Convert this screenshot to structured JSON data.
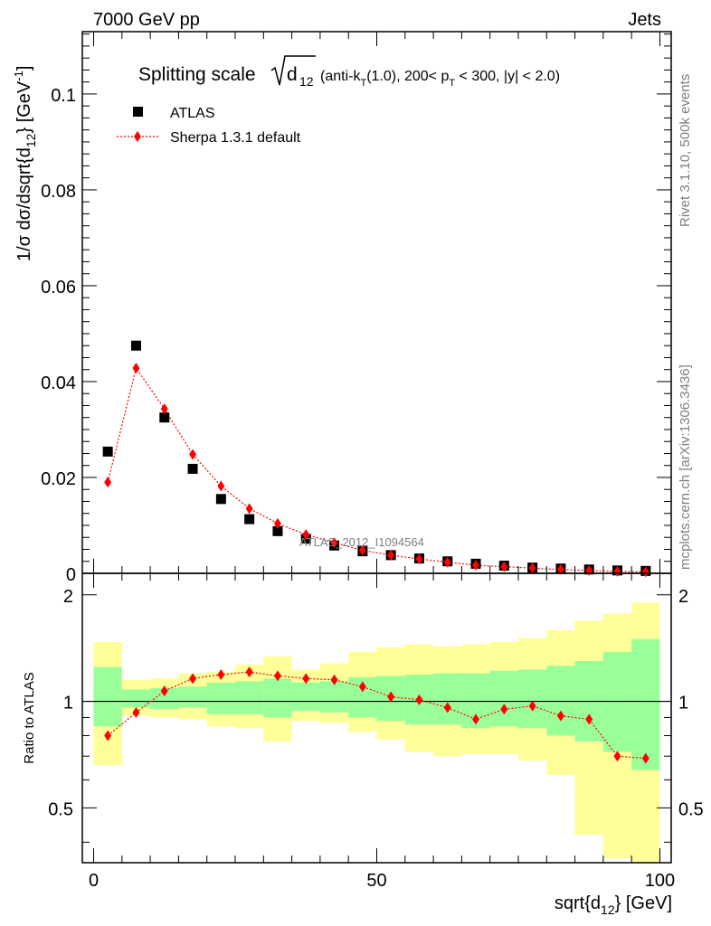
{
  "header": {
    "left": "7000 GeV pp",
    "right": "Jets"
  },
  "side_labels": {
    "rivet": "Rivet 3.1.10,  500k events",
    "mcplots": "mcplots.cern.ch [arXiv:1306.3436]"
  },
  "chart_data": [
    {
      "type": "scatter",
      "title_main": "Splitting scale",
      "title_sqrt": "d",
      "title_sqrt_sub": "12",
      "title_paren": "(anti-k",
      "title_paren_sub": "T",
      "title_paren_rest": "(1.0), 200< p",
      "title_p_sub": "T",
      "title_tail": " < 300, |y| < 2.0)",
      "ylabel": "1/σ dσ/dsqrt{d",
      "ylabel_sub": "12",
      "ylabel_tail": "} [GeV",
      "ylabel_sup": "-1",
      "ylabel_end": "]",
      "watermark": "ATLAS_2012_I1094564",
      "xlim": [
        -2,
        102
      ],
      "ylim": [
        0,
        0.113
      ],
      "yticks": [
        "0",
        "0.02",
        "0.04",
        "0.06",
        "0.08",
        "0.1"
      ],
      "ytick_values": [
        0,
        0.02,
        0.04,
        0.06,
        0.08,
        0.1
      ],
      "legend": {
        "placement": "top-left",
        "atlas": "ATLAS",
        "sherpa": "Sherpa 1.3.1 default"
      },
      "x": [
        2.5,
        7.5,
        12.5,
        17.5,
        22.5,
        27.5,
        32.5,
        37.5,
        42.5,
        47.5,
        52.5,
        57.5,
        62.5,
        67.5,
        72.5,
        77.5,
        82.5,
        87.5,
        92.5,
        97.5
      ],
      "series": [
        {
          "name": "ATLAS",
          "color": "#000000",
          "marker": "square",
          "values": [
            0.0254,
            0.0475,
            0.0325,
            0.0218,
            0.0155,
            0.0113,
            0.0088,
            0.0072,
            0.0058,
            0.0046,
            0.0038,
            0.0031,
            0.0025,
            0.002,
            0.0016,
            0.0012,
            0.001,
            0.0008,
            0.0006,
            0.0005
          ]
        },
        {
          "name": "Sherpa 1.3.1 default",
          "color": "#ff0000",
          "marker": "diamond",
          "values": [
            0.019,
            0.0428,
            0.0343,
            0.0248,
            0.0182,
            0.0135,
            0.0104,
            0.0081,
            0.0064,
            0.0048,
            0.0038,
            0.003,
            0.0023,
            0.0017,
            0.0014,
            0.0011,
            0.0008,
            0.0006,
            0.0004,
            0.0003
          ]
        }
      ]
    },
    {
      "type": "line",
      "ylabel": "Ratio to ATLAS",
      "xlabel_main": "sqrt{d",
      "xlabel_sub": "12",
      "xlabel_tail": "} [GeV]",
      "xlim": [
        -2,
        102
      ],
      "ylim": [
        0.35,
        2.3
      ],
      "xticks": [
        "0",
        "50",
        "100"
      ],
      "xtick_values": [
        0,
        50,
        100
      ],
      "yticks": [
        "0.5",
        "1",
        "2"
      ],
      "ytick_values": [
        0.5,
        1,
        2
      ],
      "reference_line": 1,
      "bin_edges": [
        0,
        5,
        10,
        15,
        20,
        25,
        30,
        35,
        40,
        45,
        50,
        55,
        60,
        65,
        70,
        75,
        80,
        85,
        90,
        95,
        100
      ],
      "band_inner": {
        "color": "#99ff99",
        "low": [
          0.85,
          0.96,
          0.95,
          0.96,
          0.92,
          0.92,
          0.9,
          0.94,
          0.93,
          0.9,
          0.88,
          0.86,
          0.86,
          0.84,
          0.85,
          0.84,
          0.8,
          0.77,
          0.72,
          0.64
        ],
        "high": [
          1.25,
          1.08,
          1.09,
          1.1,
          1.13,
          1.14,
          1.16,
          1.13,
          1.14,
          1.17,
          1.18,
          1.19,
          1.2,
          1.2,
          1.22,
          1.23,
          1.26,
          1.3,
          1.38,
          1.5
        ]
      },
      "band_outer": {
        "color": "#ffff99",
        "low": [
          0.66,
          0.91,
          0.9,
          0.89,
          0.85,
          0.84,
          0.77,
          0.88,
          0.87,
          0.82,
          0.78,
          0.72,
          0.7,
          0.71,
          0.71,
          0.68,
          0.62,
          0.42,
          0.36,
          0.33
        ],
        "high": [
          1.47,
          1.15,
          1.16,
          1.2,
          1.21,
          1.27,
          1.34,
          1.23,
          1.28,
          1.38,
          1.42,
          1.45,
          1.43,
          1.45,
          1.47,
          1.51,
          1.59,
          1.69,
          1.77,
          1.9
        ]
      },
      "x": [
        2.5,
        7.5,
        12.5,
        17.5,
        22.5,
        27.5,
        32.5,
        37.5,
        42.5,
        47.5,
        52.5,
        57.5,
        62.5,
        67.5,
        72.5,
        77.5,
        82.5,
        87.5,
        92.5,
        97.5
      ],
      "series": [
        {
          "name": "Sherpa 1.3.1 default",
          "color": "#ff0000",
          "values": [
            0.8,
            0.93,
            1.07,
            1.16,
            1.19,
            1.21,
            1.18,
            1.16,
            1.15,
            1.1,
            1.03,
            1.01,
            0.96,
            0.89,
            0.95,
            0.97,
            0.91,
            0.89,
            0.7,
            0.69
          ]
        }
      ]
    }
  ]
}
